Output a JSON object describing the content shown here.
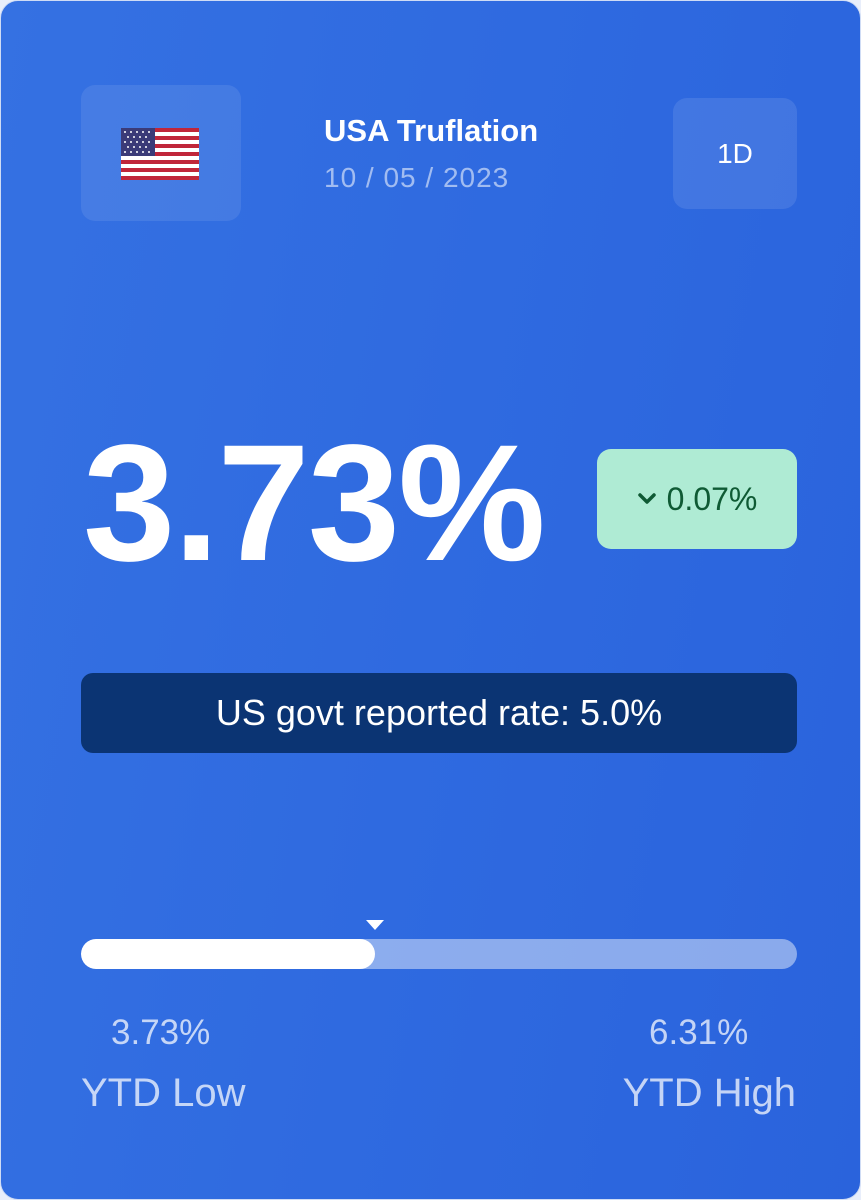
{
  "header": {
    "title": "USA Truflation",
    "date": "10 / 05 / 2023",
    "period_button": "1D"
  },
  "rate": {
    "value": "3.73%",
    "change": "0.07%"
  },
  "govt_rate": "US govt reported rate: 5.0%",
  "range_bar": {
    "fill_percent": 41
  },
  "range": {
    "low": {
      "value": "3.73%",
      "label": "YTD Low"
    },
    "high": {
      "value": "6.31%",
      "label": "YTD High"
    }
  }
}
